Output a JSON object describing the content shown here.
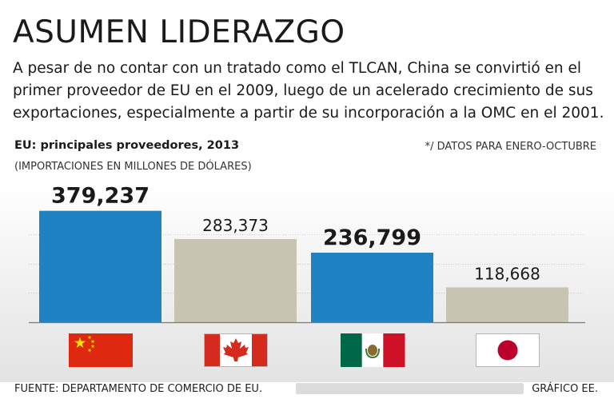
{
  "header": {
    "title": "ASUMEN LIDERAZGO",
    "subtitle": "A pesar de no contar con un tratado como el TLCAN, China se convirtió en el primer proveedor de EU en el 2009, luego de un acelerado crecimiento de sus exportaciones, especialmente a partir de su incorporación a la OMC en el 2001."
  },
  "chart_meta": {
    "chart_title": "EU: principales proveedores, 2013",
    "unit": "(IMPORTACIONES EN MILLONES DE DÓLARES)",
    "note": "*/ DATOS PARA ENERO-OCTUBRE"
  },
  "footer": {
    "source": "FUENTE: DEPARTAMENTO DE COMERCIO DE EU.",
    "credit": "GRÁFICO EE."
  },
  "colors": {
    "highlight_bar": "#1f83c3",
    "normal_bar": "#c8c4b2",
    "gridline": "#c9c9c9"
  },
  "chart_data": {
    "type": "bar",
    "title": "EU: principales proveedores, 2013",
    "ylabel": "Importaciones en millones de dólares",
    "xlabel": "",
    "ylim": [
      0,
      400000
    ],
    "grid": true,
    "categories": [
      "China",
      "Canadá",
      "México",
      "Japón"
    ],
    "values": [
      379237,
      283373,
      236799,
      118668
    ],
    "value_labels": [
      "379,237",
      "283,373",
      "236,799",
      "118,668"
    ],
    "highlighted": [
      true,
      false,
      true,
      false
    ],
    "flags": [
      "china-flag",
      "canada-flag",
      "mexico-flag",
      "japan-flag"
    ]
  }
}
